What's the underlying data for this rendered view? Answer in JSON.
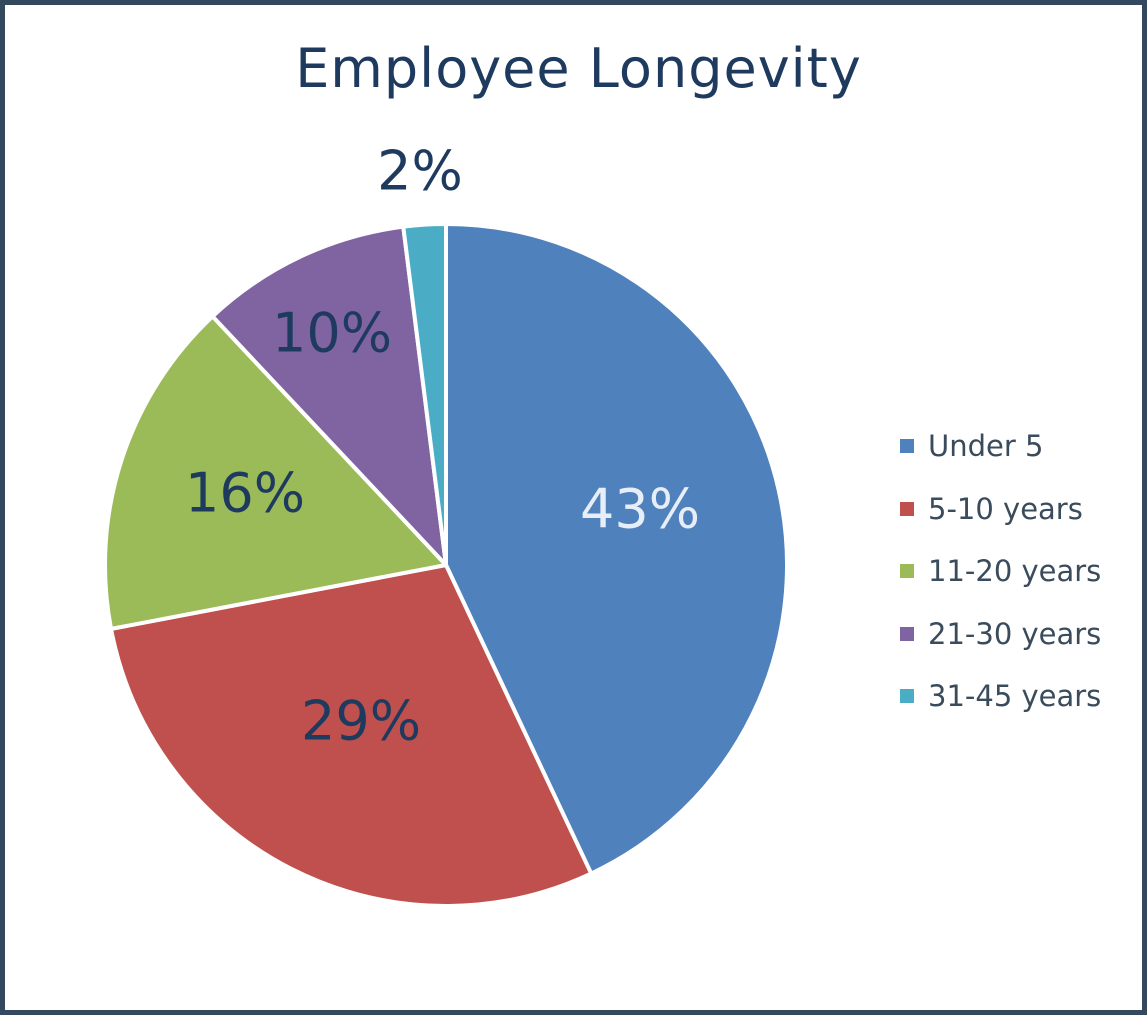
{
  "chart_data": {
    "type": "pie",
    "title": "Employee Longevity",
    "categories": [
      "Under 5",
      "5-10 years",
      "11-20 years",
      "21-30 years",
      "31-45 years"
    ],
    "values": [
      43,
      29,
      16,
      10,
      2
    ],
    "labels": [
      "43%",
      "29%",
      "16%",
      "10%",
      "2%"
    ],
    "colors": [
      "#4f81bd",
      "#c0504d",
      "#9bbb59",
      "#8064a2",
      "#4bacc6"
    ],
    "label_colors": [
      "#e8eef7",
      "#1f3a5f",
      "#1f3a5f",
      "#1f3a5f",
      "#1f3a5f"
    ],
    "legend": "right",
    "start": "top, clockwise"
  }
}
